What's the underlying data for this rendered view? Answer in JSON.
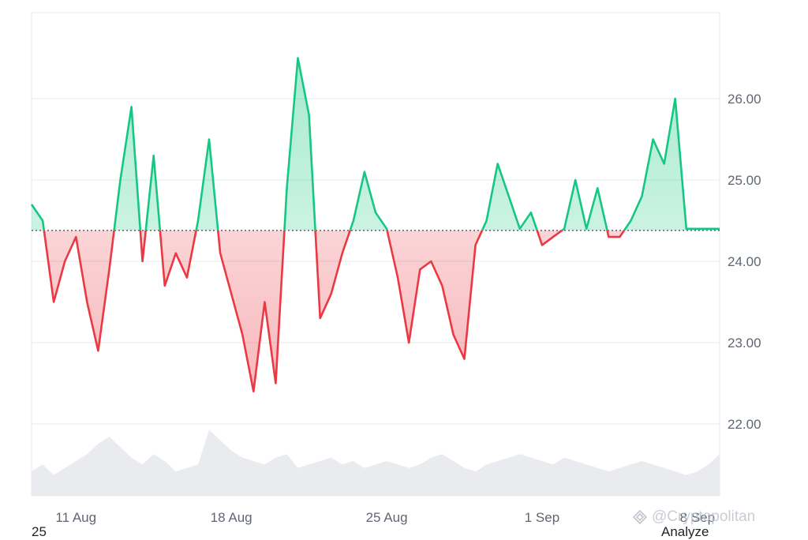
{
  "chart_data": {
    "type": "area",
    "ylim": [
      21.0,
      27.0
    ],
    "yticks": [
      22.0,
      23.0,
      24.0,
      25.0,
      26.0
    ],
    "ytick_labels": [
      "22.00",
      "23.00",
      "24.00",
      "25.00",
      "26.00"
    ],
    "xticks": [
      {
        "x": 3.0,
        "label": "11 Aug"
      },
      {
        "x": 10.0,
        "label": "18 Aug"
      },
      {
        "x": 17.0,
        "label": "25 Aug"
      },
      {
        "x": 24.0,
        "label": "1 Sep"
      },
      {
        "x": 31.0,
        "label": "8 Sep"
      }
    ],
    "baseline": 24.38,
    "series": [
      {
        "x": [
          1.0,
          1.5,
          2.0,
          2.5,
          3.0,
          3.5,
          4.0,
          4.5,
          5.0,
          5.5,
          6.0,
          6.5,
          7.0,
          7.5,
          8.0,
          8.5,
          9.0,
          9.5,
          10.0,
          10.5,
          11.0,
          11.5,
          12.0,
          12.5,
          13.0,
          13.5,
          14.0,
          14.5,
          15.0,
          15.5,
          16.0,
          16.5,
          17.0,
          17.5,
          18.0,
          18.5,
          19.0,
          19.5,
          20.0,
          20.5,
          21.0,
          21.5,
          22.0,
          22.5,
          23.0,
          23.5,
          24.0,
          24.5,
          25.0,
          25.5,
          26.0,
          26.5,
          27.0,
          27.5,
          28.0,
          28.5,
          29.0,
          29.5,
          30.0,
          30.5,
          31.0,
          31.5,
          32.0
        ],
        "y": [
          24.7,
          24.5,
          23.5,
          24.0,
          24.3,
          23.5,
          22.9,
          23.9,
          25.0,
          25.9,
          24.0,
          25.3,
          23.7,
          24.1,
          23.8,
          24.5,
          25.5,
          24.1,
          23.6,
          23.1,
          22.4,
          23.5,
          22.5,
          24.9,
          26.5,
          25.8,
          23.3,
          23.6,
          24.1,
          24.5,
          25.1,
          24.6,
          24.4,
          23.8,
          23.0,
          23.9,
          24.0,
          23.7,
          23.1,
          22.8,
          24.2,
          24.5,
          25.2,
          24.8,
          24.4,
          24.6,
          24.2,
          24.3,
          24.4,
          25.0,
          24.4,
          24.9,
          24.3,
          24.3,
          24.5,
          24.8,
          25.5,
          25.2,
          26.0,
          24.4,
          24.4,
          24.4,
          24.4
        ]
      }
    ],
    "volume": [
      0.35,
      0.45,
      0.3,
      0.4,
      0.5,
      0.6,
      0.75,
      0.85,
      0.7,
      0.55,
      0.45,
      0.6,
      0.5,
      0.35,
      0.4,
      0.45,
      0.95,
      0.8,
      0.65,
      0.55,
      0.5,
      0.45,
      0.55,
      0.6,
      0.4,
      0.45,
      0.5,
      0.55,
      0.45,
      0.5,
      0.4,
      0.45,
      0.5,
      0.45,
      0.4,
      0.45,
      0.55,
      0.6,
      0.5,
      0.4,
      0.35,
      0.45,
      0.5,
      0.55,
      0.6,
      0.55,
      0.5,
      0.45,
      0.55,
      0.5,
      0.45,
      0.4,
      0.35,
      0.4,
      0.45,
      0.5,
      0.45,
      0.4,
      0.35,
      0.3,
      0.35,
      0.45,
      0.6
    ],
    "colors": {
      "up": "#16c784",
      "down": "#ea3943",
      "grid": "#e6e8ec",
      "baseline": "#444444",
      "volume": "#e9ebef"
    }
  },
  "footer": {
    "left": "25",
    "right": "Analyze"
  },
  "watermark": {
    "text": "@Cryptopolitan"
  }
}
